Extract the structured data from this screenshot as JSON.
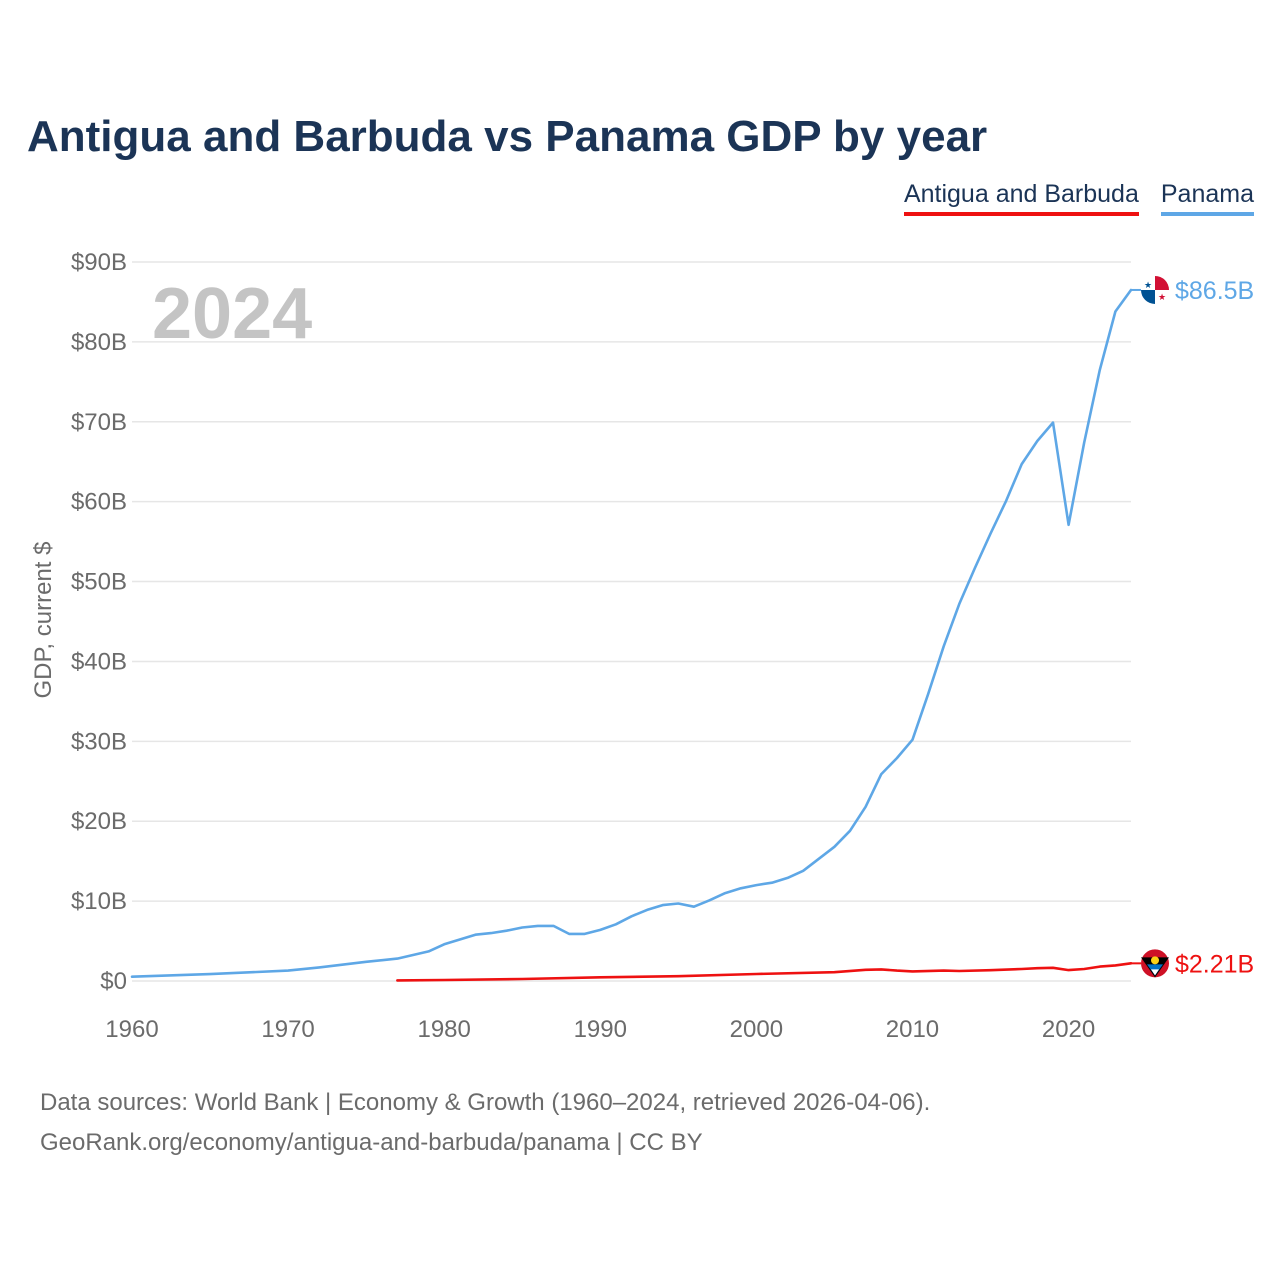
{
  "title": "Antigua and Barbuda vs Panama GDP by year",
  "legend": [
    {
      "label": "Antigua and Barbuda",
      "color": "#ee1111"
    },
    {
      "label": "Panama",
      "color": "#5ea7e6"
    }
  ],
  "chart_data": {
    "type": "line",
    "title": "Antigua and Barbuda vs Panama GDP by year",
    "ylabel": "GDP, current $",
    "xlabel": "",
    "year_label": "2024",
    "xlim": [
      1960,
      2024
    ],
    "ylim": [
      0,
      90
    ],
    "x_ticks": [
      1960,
      1970,
      1980,
      1990,
      2000,
      2010,
      2020
    ],
    "y_ticks": [
      {
        "value": 0,
        "label": "$0"
      },
      {
        "value": 10,
        "label": "$10B"
      },
      {
        "value": 20,
        "label": "$20B"
      },
      {
        "value": 30,
        "label": "$30B"
      },
      {
        "value": 40,
        "label": "$40B"
      },
      {
        "value": 50,
        "label": "$50B"
      },
      {
        "value": 60,
        "label": "$60B"
      },
      {
        "value": 70,
        "label": "$70B"
      },
      {
        "value": 80,
        "label": "$80B"
      },
      {
        "value": 90,
        "label": "$90B"
      }
    ],
    "series": [
      {
        "name": "Panama",
        "color": "#5ea7e6",
        "end_label": "$86.5B",
        "x": [
          1960,
          1965,
          1970,
          1972,
          1975,
          1977,
          1979,
          1980,
          1982,
          1983,
          1984,
          1985,
          1986,
          1987,
          1988,
          1989,
          1990,
          1991,
          1992,
          1993,
          1994,
          1995,
          1996,
          1997,
          1998,
          1999,
          2000,
          2001,
          2002,
          2003,
          2004,
          2005,
          2006,
          2007,
          2008,
          2009,
          2010,
          2011,
          2012,
          2013,
          2014,
          2015,
          2016,
          2017,
          2018,
          2019,
          2020,
          2021,
          2022,
          2023,
          2024
        ],
        "values": [
          0.54,
          0.86,
          1.3,
          1.7,
          2.4,
          2.8,
          3.7,
          4.6,
          5.8,
          6.0,
          6.3,
          6.7,
          6.9,
          6.9,
          5.9,
          5.9,
          6.4,
          7.1,
          8.1,
          8.9,
          9.5,
          9.7,
          9.3,
          10.1,
          11.0,
          11.6,
          12.0,
          12.3,
          12.9,
          13.8,
          15.3,
          16.8,
          18.8,
          21.8,
          25.9,
          27.9,
          30.2,
          35.9,
          41.9,
          47.2,
          51.7,
          56.0,
          60.1,
          64.7,
          67.6,
          69.9,
          57.1,
          67.4,
          76.5,
          83.8,
          86.5
        ]
      },
      {
        "name": "Antigua and Barbuda",
        "color": "#ee1111",
        "end_label": "$2.21B",
        "x": [
          1977,
          1980,
          1985,
          1990,
          1995,
          2000,
          2005,
          2007,
          2008,
          2009,
          2010,
          2012,
          2013,
          2015,
          2017,
          2018,
          2019,
          2020,
          2021,
          2022,
          2023,
          2024
        ],
        "values": [
          0.08,
          0.13,
          0.25,
          0.46,
          0.6,
          0.87,
          1.1,
          1.4,
          1.45,
          1.3,
          1.2,
          1.3,
          1.25,
          1.35,
          1.5,
          1.6,
          1.65,
          1.37,
          1.5,
          1.8,
          1.95,
          2.21
        ]
      }
    ]
  },
  "source": {
    "line1": "Data sources: World Bank | Economy & Growth (1960–2024, retrieved 2026-04-06).",
    "line2": "GeoRank.org/economy/antigua-and-barbuda/panama | CC BY"
  }
}
